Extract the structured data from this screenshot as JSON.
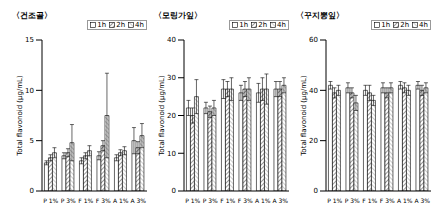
{
  "chart_data": [
    {
      "type": "bar",
      "title": "〈건조골〉",
      "ylabel": "Total flavonoid (μg/mL)",
      "legend": "top-right",
      "categories": [
        "P 1%",
        "P 3%",
        "F 1%",
        "F 3%",
        "A 1%",
        "A 3%"
      ],
      "ylim": [
        0,
        15
      ],
      "yticks": [
        0,
        5,
        10,
        15
      ],
      "series": [
        {
          "name": "1h",
          "color": "#ffffff",
          "values": [
            2.8,
            3.5,
            3.0,
            3.5,
            3.3,
            5.0
          ],
          "errors": [
            0.2,
            0.3,
            0.3,
            0.4,
            0.3,
            1.3
          ]
        },
        {
          "name": "2h",
          "color": "#333333",
          "values": [
            3.3,
            3.8,
            3.5,
            4.5,
            3.8,
            4.3
          ],
          "errors": [
            0.3,
            0.4,
            0.3,
            0.5,
            0.3,
            0.6
          ]
        },
        {
          "name": "4h",
          "color": "#999999",
          "values": [
            3.8,
            4.8,
            4.0,
            7.5,
            4.0,
            5.5
          ],
          "errors": [
            0.5,
            1.8,
            0.5,
            4.2,
            0.4,
            1.2
          ]
        }
      ]
    },
    {
      "type": "bar",
      "title": "〈모링가잎〉",
      "ylabel": "Total flavonoid (μg/mL)",
      "legend": "top-right",
      "categories": [
        "P 1%",
        "P 3%",
        "F 1%",
        "F 3%",
        "A 1%",
        "A 3%"
      ],
      "ylim": [
        0,
        40
      ],
      "yticks": [
        0,
        10,
        20,
        30,
        40
      ],
      "series": [
        {
          "name": "1h",
          "color": "#ffffff",
          "values": [
            22,
            22,
            27,
            26,
            26,
            27
          ],
          "errors": [
            2,
            1.5,
            2.5,
            2,
            2.5,
            2
          ]
        },
        {
          "name": "2h",
          "color": "#333333",
          "values": [
            20,
            21,
            27,
            27,
            27,
            27
          ],
          "errors": [
            2,
            1.5,
            2,
            2,
            3,
            2
          ]
        },
        {
          "name": "4h",
          "color": "#999999",
          "values": [
            25,
            22,
            27,
            27,
            27,
            28
          ],
          "errors": [
            4.5,
            2,
            3,
            3,
            4,
            2
          ]
        }
      ]
    },
    {
      "type": "bar",
      "title": "〈꾸지뽕잎〉",
      "ylabel": "Total flavonoid (μg/mL)",
      "legend": "top-right",
      "categories": [
        "P 1%",
        "P 3%",
        "F 1%",
        "F 3%",
        "A 1%",
        "A 3%"
      ],
      "ylim": [
        0,
        60
      ],
      "yticks": [
        0,
        20,
        40,
        60
      ],
      "series": [
        {
          "name": "1h",
          "color": "#ffffff",
          "values": [
            42,
            41,
            40,
            41,
            42,
            42
          ],
          "errors": [
            1.5,
            2,
            2,
            2,
            1.5,
            1.5
          ]
        },
        {
          "name": "2h",
          "color": "#333333",
          "values": [
            39,
            39,
            39,
            39,
            41,
            40
          ],
          "errors": [
            2,
            2,
            3,
            2,
            2,
            2
          ]
        },
        {
          "name": "4h",
          "color": "#999999",
          "values": [
            40,
            35,
            36,
            41,
            40,
            41
          ],
          "errors": [
            2,
            3,
            2,
            2,
            2,
            2
          ]
        }
      ]
    }
  ]
}
